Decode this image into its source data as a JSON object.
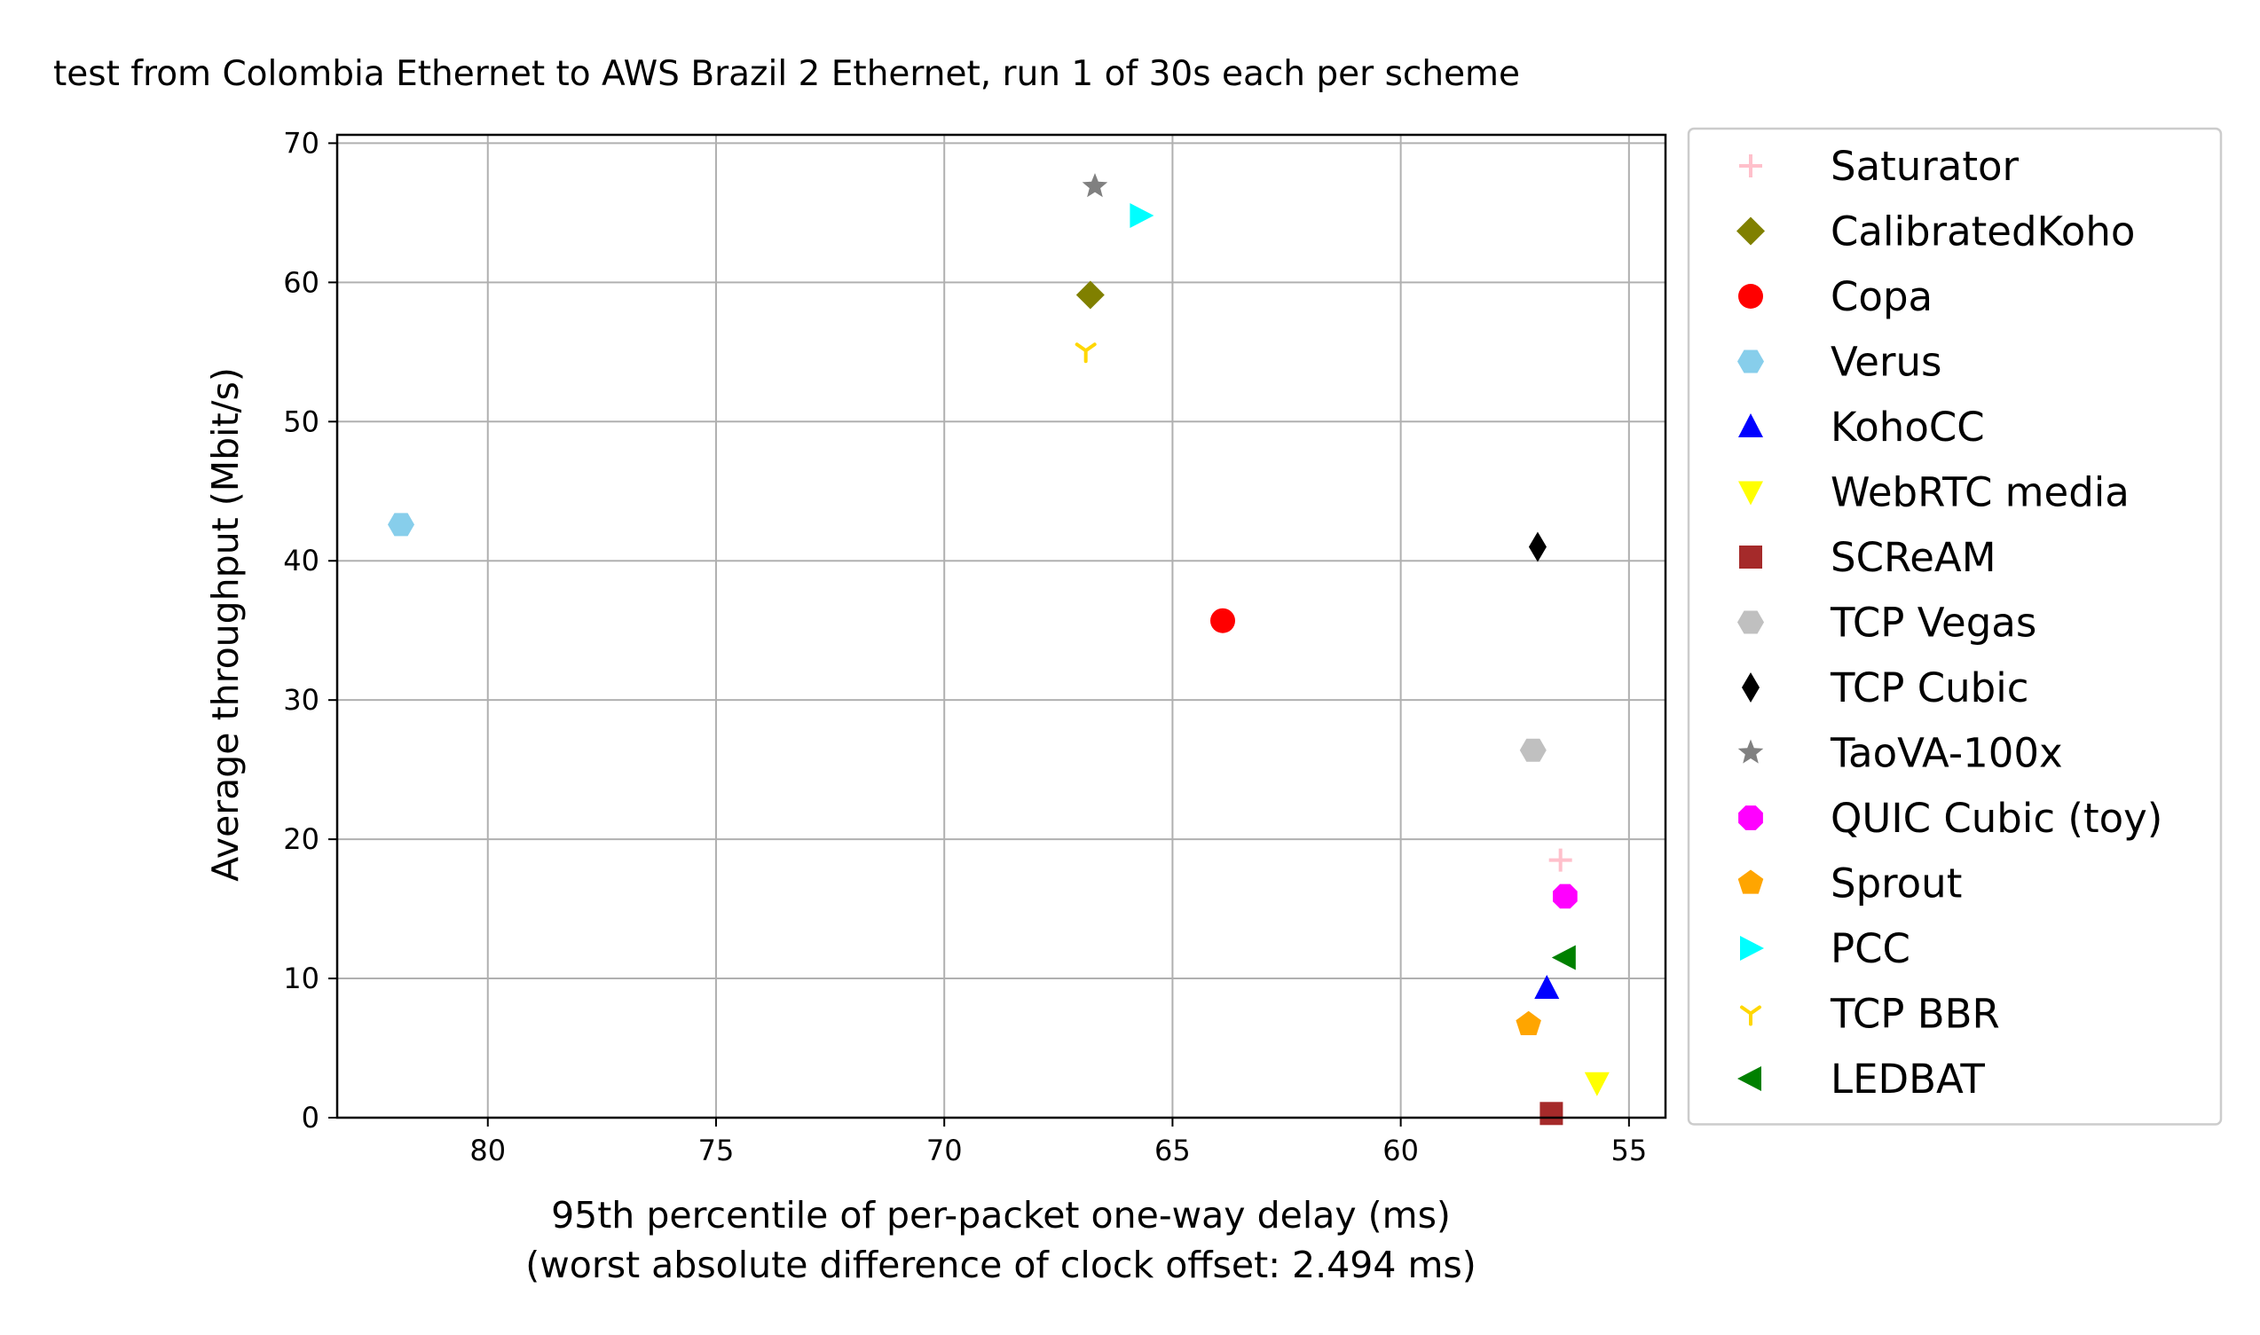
{
  "chart_data": {
    "type": "scatter",
    "title": "test from Colombia Ethernet to AWS Brazil 2 Ethernet, run 1 of 30s each per scheme",
    "xlabel": "95th percentile of per-packet one-way delay (ms)",
    "xlabel2": "(worst absolute difference of clock offset: 2.494 ms)",
    "ylabel": "Average throughput (Mbit/s)",
    "xlim": [
      83.3,
      54.2
    ],
    "ylim": [
      0,
      70.6
    ],
    "x_inverted": true,
    "grid": true,
    "legend_position": "outside-right",
    "x_ticks": [
      80,
      75,
      70,
      65,
      60,
      55
    ],
    "y_ticks": [
      0,
      10,
      20,
      30,
      40,
      50,
      60,
      70
    ],
    "series": [
      {
        "name": "Saturator",
        "marker": "plus",
        "color": "#ffc0cb",
        "x": 56.5,
        "y": 18.5
      },
      {
        "name": "CalibratedKoho",
        "marker": "diamond",
        "color": "#808000",
        "x": 66.8,
        "y": 59.1
      },
      {
        "name": "Copa",
        "marker": "circle",
        "color": "#ff0000",
        "x": 63.9,
        "y": 35.7
      },
      {
        "name": "Verus",
        "marker": "hexagon",
        "color": "#87ceeb",
        "x": 81.9,
        "y": 42.6
      },
      {
        "name": "KohoCC",
        "marker": "triangle-up",
        "color": "#0000ff",
        "x": 56.8,
        "y": 9.3
      },
      {
        "name": "WebRTC media",
        "marker": "triangle-down",
        "color": "#ffff00",
        "x": 55.7,
        "y": 2.5
      },
      {
        "name": "SCReAM",
        "marker": "square",
        "color": "#a52a2a",
        "x": 56.7,
        "y": 0.3
      },
      {
        "name": "TCP Vegas",
        "marker": "hexagon",
        "color": "#c0c0c0",
        "x": 57.1,
        "y": 26.4
      },
      {
        "name": "TCP Cubic",
        "marker": "thin-diamond",
        "color": "#000000",
        "x": 57.0,
        "y": 41.0
      },
      {
        "name": "TaoVA-100x",
        "marker": "star",
        "color": "#808080",
        "x": 66.7,
        "y": 66.9
      },
      {
        "name": "QUIC Cubic (toy)",
        "marker": "octagon",
        "color": "#ff00ff",
        "x": 56.4,
        "y": 15.9
      },
      {
        "name": "Sprout",
        "marker": "pentagon",
        "color": "#ffa500",
        "x": 57.2,
        "y": 6.7
      },
      {
        "name": "PCC",
        "marker": "triangle-right",
        "color": "#00ffff",
        "x": 65.7,
        "y": 64.8
      },
      {
        "name": "TCP BBR",
        "marker": "tri-down",
        "color": "#ffd700",
        "x": 66.9,
        "y": 55.1
      },
      {
        "name": "LEDBAT",
        "marker": "triangle-left",
        "color": "#008000",
        "x": 56.4,
        "y": 11.5
      }
    ]
  }
}
